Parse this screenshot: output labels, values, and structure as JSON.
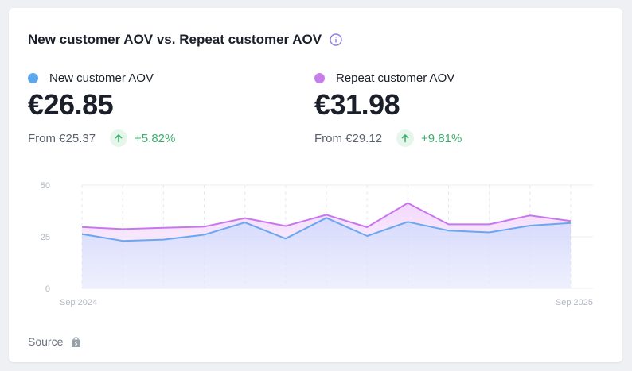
{
  "card": {
    "title": "New customer AOV vs. Repeat customer AOV",
    "source_label": "Source"
  },
  "metrics": [
    {
      "label": "New customer AOV",
      "value": "€26.85",
      "from": "From €25.37",
      "change": "+5.82%",
      "color": "#5aa7ee"
    },
    {
      "label": "Repeat customer AOV",
      "value": "€31.98",
      "from": "From €29.12",
      "change": "+9.81%",
      "color": "#c77dea"
    }
  ],
  "icons": {
    "info": "info-icon",
    "trend": "arrow-up-icon",
    "source": "shopify-bag-icon"
  },
  "chart_data": {
    "type": "area",
    "x": [
      "2024-09",
      "2024-10",
      "2024-11",
      "2024-12",
      "2025-01",
      "2025-02",
      "2025-03",
      "2025-04",
      "2025-05",
      "2025-06",
      "2025-07",
      "2025-08",
      "2025-09"
    ],
    "x_tick_labels": [
      "Sep 2024",
      "Sep 2025"
    ],
    "y_ticks": [
      0,
      25,
      50
    ],
    "ylim": [
      0,
      50
    ],
    "grid": true,
    "series": [
      {
        "name": "New customer AOV",
        "color": "#6aa6f2",
        "values": [
          26.3,
          23.0,
          23.6,
          26.0,
          31.9,
          24.1,
          34.1,
          25.4,
          32.2,
          28.0,
          27.1,
          30.4,
          31.6
        ]
      },
      {
        "name": "Repeat customer AOV",
        "color": "#c876ee",
        "values": [
          29.7,
          28.7,
          29.3,
          29.9,
          34.0,
          30.2,
          35.6,
          29.6,
          41.3,
          31.0,
          31.0,
          35.3,
          32.6
        ]
      }
    ]
  }
}
